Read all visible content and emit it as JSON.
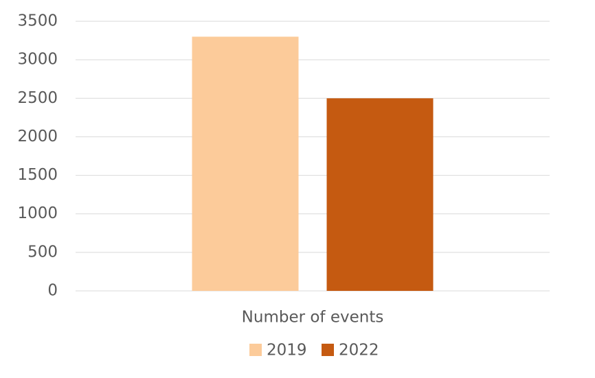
{
  "chart_data": {
    "type": "bar",
    "categories": [
      "Number of events"
    ],
    "series": [
      {
        "name": "2019",
        "color": "#fccb9a",
        "values": [
          3300
        ]
      },
      {
        "name": "2022",
        "color": "#c55a11",
        "values": [
          2500
        ]
      }
    ],
    "ylim": [
      0,
      3500
    ],
    "yticks": [
      0,
      500,
      1000,
      1500,
      2000,
      2500,
      3000,
      3500
    ],
    "grid": true,
    "legend": "bottom"
  }
}
